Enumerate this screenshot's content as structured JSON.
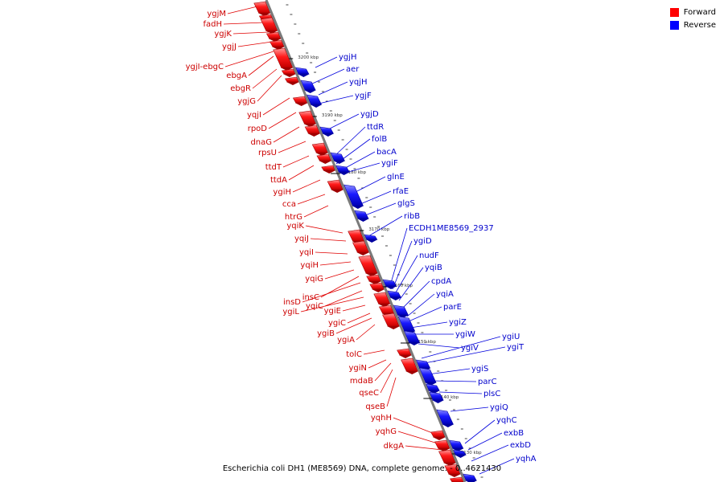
{
  "legend": {
    "forward_label": "Forward",
    "reverse_label": "Reverse",
    "forward_color": "#ff0000",
    "reverse_color": "#0000ff"
  },
  "caption": "Escherichia coli DH1 (ME8569) DNA, complete genome. - 0..4621430",
  "ticks": [
    "3200 kbp",
    "3190 kbp",
    "3180 kbp",
    "3170 kbp",
    "3160 kbp",
    "3150 kbp",
    "3140 kbp",
    "3130 kbp"
  ],
  "forward_labels": [
    "ygjM",
    "fadH",
    "ygjK",
    "ygjJ",
    "ygjI-ebgC",
    "ebgA",
    "ebgR",
    "ygjG",
    "yqjI",
    "rpoD",
    "dnaG",
    "rpsU",
    "ttdT",
    "ttdA",
    "ygiH",
    "cca",
    "htrG",
    "yqiK",
    "yqiJ",
    "yqiI",
    "yqiH",
    "yqiG",
    "insC",
    "insD",
    "yqiC",
    "ygiL",
    "ygiE",
    "ygiC",
    "ygiB",
    "ygiA",
    "tolC",
    "ygiN",
    "mdaB",
    "qseC",
    "qseB",
    "yqhH",
    "yqhG",
    "dkgA"
  ],
  "reverse_labels": [
    "ygjH",
    "aer",
    "yqjH",
    "ygjF",
    "ygjD",
    "ttdR",
    "folB",
    "bacA",
    "ygiF",
    "glnE",
    "rfaE",
    "glgS",
    "ribB",
    "ECDH1ME8569_2937",
    "ygiD",
    "nudF",
    "yqiB",
    "cpdA",
    "yqiA",
    "parE",
    "ygiZ",
    "ygiW",
    "ygiV",
    "ygiU",
    "ygiT",
    "ygiS",
    "parC",
    "plsC",
    "ygiQ",
    "yqhC",
    "exbB",
    "exbD",
    "yqhA"
  ]
}
